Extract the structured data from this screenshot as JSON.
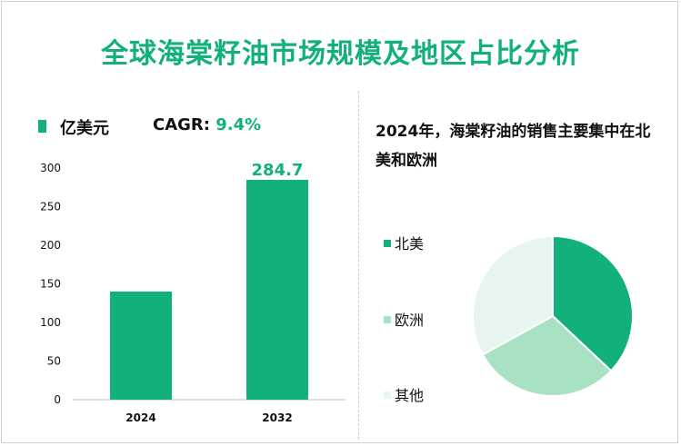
{
  "title": "全球海棠籽油市场规模及地区占比分析",
  "bar_section": {
    "unit_label": "亿美元",
    "cagr_label": "CAGR:",
    "cagr_value": "9.4%"
  },
  "pie_section": {
    "subtitle": "2024年，海棠籽油的销售主要集中在北美和欧洲"
  },
  "colors": {
    "accent": "#12b07a",
    "pie": [
      "#12b07a",
      "#a8e2c2",
      "#e6f6ee"
    ]
  },
  "chart_data": [
    {
      "type": "bar",
      "categories": [
        "2024",
        "2032"
      ],
      "values": [
        140,
        284.7
      ],
      "data_labels": [
        "",
        "284.7"
      ],
      "ylim": [
        0,
        300
      ],
      "yticks": [
        0,
        50,
        100,
        150,
        200,
        250,
        300
      ],
      "grid": false
    },
    {
      "type": "pie",
      "labels": [
        "北美",
        "欧洲",
        "其他"
      ],
      "values": [
        37,
        30,
        33
      ],
      "legend": "left"
    }
  ]
}
